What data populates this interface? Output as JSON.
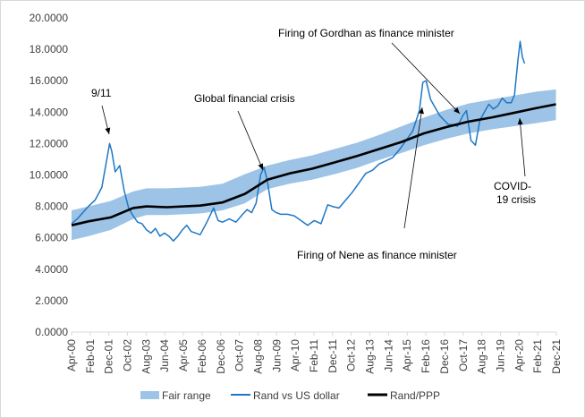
{
  "chart_data": {
    "type": "line",
    "ylim": [
      0,
      20
    ],
    "y_ticks": [
      "0.0000",
      "2.0000",
      "4.0000",
      "6.0000",
      "8.0000",
      "10.0000",
      "12.0000",
      "14.0000",
      "16.0000",
      "18.0000",
      "20.0000"
    ],
    "x_ticks": [
      "Apr-00",
      "Feb-01",
      "Dec-01",
      "Oct-02",
      "Aug-03",
      "Jun-04",
      "Apr-05",
      "Feb-06",
      "Dec-06",
      "Oct-07",
      "Aug-08",
      "Jun-09",
      "Apr-10",
      "Feb-11",
      "Dec-11",
      "Oct-12",
      "Aug-13",
      "Jun-14",
      "Apr-15",
      "Feb-16",
      "Dec-16",
      "Oct-17",
      "Aug-18",
      "Jun-19",
      "Apr-20",
      "Feb-21",
      "Dec-21"
    ],
    "grid": false,
    "legend_position": "bottom",
    "series": [
      {
        "name": "Fair range",
        "kind": "band",
        "color": "#9dc3e6",
        "x": [
          2000.25,
          2001.0,
          2002.0,
          2003.0,
          2003.6,
          2004.5,
          2006.0,
          2007.0,
          2008.0,
          2009.0,
          2010.0,
          2011.0,
          2012.0,
          2013.0,
          2014.0,
          2015.0,
          2016.0,
          2017.0,
          2018.0,
          2019.0,
          2020.0,
          2021.0,
          2021.9
        ],
        "lower": [
          5.85,
          6.1,
          6.5,
          7.2,
          7.45,
          7.45,
          7.55,
          7.75,
          8.2,
          9.1,
          9.45,
          9.7,
          10.05,
          10.45,
          10.95,
          11.4,
          11.9,
          12.3,
          12.65,
          12.9,
          13.1,
          13.3,
          13.5
        ],
        "upper": [
          7.75,
          8.0,
          8.35,
          8.95,
          9.15,
          9.15,
          9.25,
          9.45,
          10.05,
          10.6,
          10.95,
          11.25,
          11.65,
          12.05,
          12.55,
          13.1,
          13.65,
          14.15,
          14.55,
          14.8,
          15.05,
          15.3,
          15.45
        ]
      },
      {
        "name": "Rand vs US dollar",
        "kind": "line",
        "color": "#1f77c4",
        "x": [
          2000.25,
          2000.5,
          2000.75,
          2001.0,
          2001.3,
          2001.6,
          2001.8,
          2001.95,
          2002.05,
          2002.2,
          2002.4,
          2002.6,
          2002.8,
          2003.0,
          2003.2,
          2003.4,
          2003.6,
          2003.8,
          2004.0,
          2004.2,
          2004.4,
          2004.6,
          2004.8,
          2005.0,
          2005.2,
          2005.4,
          2005.6,
          2005.8,
          2006.0,
          2006.3,
          2006.6,
          2006.8,
          2007.0,
          2007.3,
          2007.6,
          2007.9,
          2008.1,
          2008.3,
          2008.5,
          2008.7,
          2008.85,
          2009.0,
          2009.2,
          2009.4,
          2009.6,
          2009.9,
          2010.2,
          2010.5,
          2010.8,
          2011.1,
          2011.4,
          2011.7,
          2011.9,
          2012.2,
          2012.5,
          2012.8,
          2013.1,
          2013.4,
          2013.7,
          2014.0,
          2014.3,
          2014.6,
          2014.9,
          2015.2,
          2015.5,
          2015.8,
          2015.95,
          2016.1,
          2016.3,
          2016.5,
          2016.7,
          2016.9,
          2017.1,
          2017.3,
          2017.5,
          2017.75,
          2017.9,
          2018.1,
          2018.3,
          2018.5,
          2018.7,
          2018.9,
          2019.1,
          2019.3,
          2019.5,
          2019.7,
          2019.9,
          2020.05,
          2020.2,
          2020.3,
          2020.4,
          2020.5
        ],
        "values": [
          6.9,
          7.2,
          7.6,
          8.0,
          8.4,
          9.2,
          10.8,
          12.0,
          11.5,
          10.2,
          10.6,
          9.0,
          7.9,
          7.4,
          7.0,
          6.9,
          6.5,
          6.3,
          6.6,
          6.1,
          6.3,
          6.1,
          5.8,
          6.1,
          6.5,
          6.8,
          6.4,
          6.3,
          6.2,
          7.0,
          7.9,
          7.1,
          7.0,
          7.2,
          7.0,
          7.5,
          7.8,
          7.6,
          8.2,
          10.0,
          10.5,
          9.6,
          7.8,
          7.6,
          7.5,
          7.5,
          7.4,
          7.1,
          6.8,
          7.1,
          6.9,
          8.1,
          8.0,
          7.9,
          8.4,
          8.9,
          9.5,
          10.1,
          10.3,
          10.7,
          10.9,
          11.1,
          11.6,
          12.2,
          12.8,
          14.1,
          15.9,
          16.0,
          14.8,
          14.3,
          13.8,
          13.5,
          13.2,
          13.2,
          13.1,
          13.8,
          14.1,
          12.2,
          11.9,
          13.5,
          14.0,
          14.5,
          14.2,
          14.4,
          14.9,
          14.6,
          14.6,
          15.1,
          17.3,
          18.5,
          17.5,
          17.1
        ]
      },
      {
        "name": "Rand/PPP",
        "kind": "line",
        "color": "#000000",
        "x": [
          2000.25,
          2001.0,
          2002.0,
          2003.0,
          2003.6,
          2004.5,
          2006.0,
          2007.0,
          2008.0,
          2009.0,
          2010.0,
          2011.0,
          2012.0,
          2013.0,
          2014.0,
          2015.0,
          2016.0,
          2017.0,
          2018.0,
          2019.0,
          2020.0,
          2021.0,
          2021.9
        ],
        "values": [
          6.8,
          7.05,
          7.3,
          7.9,
          8.0,
          7.95,
          8.05,
          8.25,
          8.8,
          9.7,
          10.1,
          10.4,
          10.8,
          11.2,
          11.65,
          12.1,
          12.65,
          13.05,
          13.4,
          13.65,
          13.95,
          14.25,
          14.5
        ]
      }
    ],
    "annotations": [
      {
        "text": "9/11",
        "x": 2001.95,
        "y": 12.0
      },
      {
        "text": "Global financial crisis",
        "x": 2008.7,
        "y": 10.0
      },
      {
        "text": "Firing of Gordhan as finance minister",
        "x": 2017.5,
        "y": 14.2
      },
      {
        "text": "Firing of Nene as finance minister",
        "x": 2015.95,
        "y": 14.3
      },
      {
        "text": "COVID-",
        "x": 2020.3,
        "y": 13.2
      },
      {
        "text": "19 crisis",
        "x": 2020.3,
        "y": 13.2
      }
    ],
    "legend": [
      "Fair range",
      "Rand vs US dollar",
      "Rand/PPP"
    ]
  }
}
